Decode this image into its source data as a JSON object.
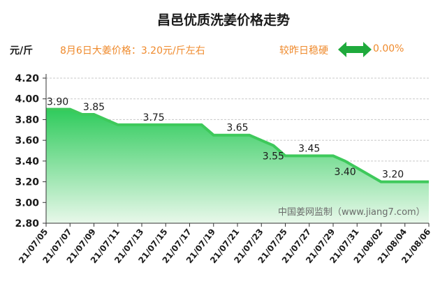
{
  "header": {
    "title": "昌邑优质洗姜价格走势",
    "unit": "元/斤",
    "price_note": "8月6日大姜价格：3.20元/斤左右",
    "compare_label": "较昨日稳硬",
    "change_value": "0.00%"
  },
  "watermark": "中国姜网监制（www.jiang7.com）",
  "colors": {
    "line": "#3ec95b",
    "fill_top": "#2fcb5c",
    "fill_bottom": "#e8f8ea",
    "accent": "#ef8a2c",
    "arrow": "#1faa3c"
  },
  "chart_data": {
    "type": "area",
    "title": "昌邑优质洗姜价格走势",
    "ylabel": "元/斤",
    "ylim": [
      2.8,
      4.2
    ],
    "yticks": [
      "4.20",
      "4.00",
      "3.80",
      "3.60",
      "3.40",
      "3.20",
      "3.00",
      "2.80"
    ],
    "xlim": [
      "21/07/05",
      "21/08/06"
    ],
    "xticks": [
      "21/07/05",
      "21/07/07",
      "21/07/09",
      "21/07/11",
      "21/07/13",
      "21/07/15",
      "21/07/17",
      "21/07/19",
      "21/07/21",
      "21/07/23",
      "21/07/25",
      "21/07/27",
      "21/07/29",
      "21/07/31",
      "21/08/02",
      "21/08/04",
      "21/08/06"
    ],
    "grid": true,
    "points": [
      {
        "x": "21/07/05",
        "y": 3.9
      },
      {
        "x": "21/07/07",
        "y": 3.9
      },
      {
        "x": "21/07/08",
        "y": 3.85
      },
      {
        "x": "21/07/09",
        "y": 3.85
      },
      {
        "x": "21/07/11",
        "y": 3.75
      },
      {
        "x": "21/07/18",
        "y": 3.75
      },
      {
        "x": "21/07/19",
        "y": 3.65
      },
      {
        "x": "21/07/22",
        "y": 3.65
      },
      {
        "x": "21/07/24",
        "y": 3.55
      },
      {
        "x": "21/07/25",
        "y": 3.45
      },
      {
        "x": "21/07/29",
        "y": 3.45
      },
      {
        "x": "21/07/30",
        "y": 3.4
      },
      {
        "x": "21/08/02",
        "y": 3.2
      },
      {
        "x": "21/08/06",
        "y": 3.2
      }
    ],
    "data_labels": [
      {
        "text": "3.90",
        "x": "21/07/05",
        "y": 3.9
      },
      {
        "text": "3.85",
        "x": "21/07/09",
        "y": 3.85
      },
      {
        "text": "3.75",
        "x": "21/07/14",
        "y": 3.75
      },
      {
        "text": "3.65",
        "x": "21/07/21",
        "y": 3.65
      },
      {
        "text": "3.55",
        "x": "21/07/24",
        "y": 3.55
      },
      {
        "text": "3.45",
        "x": "21/07/27",
        "y": 3.45
      },
      {
        "text": "3.40",
        "x": "21/07/30",
        "y": 3.4
      },
      {
        "text": "3.20",
        "x": "21/08/03",
        "y": 3.2
      }
    ]
  }
}
